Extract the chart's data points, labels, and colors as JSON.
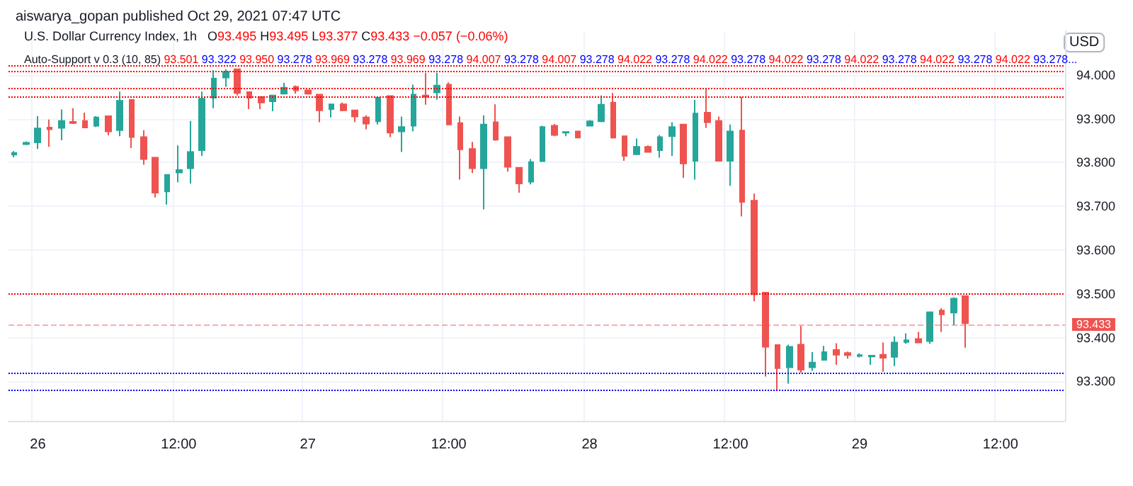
{
  "chart_data": {
    "type": "candlestick",
    "title": "U.S. Dollar Currency Index, 1h",
    "subtitle": "O93.495 H93.495 L93.377 C93.433 −0.057 (−0.06%)",
    "ylabel": "USD",
    "annotations": [
      "aiswarya_gopan published Oct 29, 2021 07:47 UTC",
      "Auto-Support v 0.3 (10, 85)",
      "93.501",
      "93.322",
      "93.950",
      "93.278",
      "93.969",
      "93.278",
      "93.969",
      "93.278",
      "94.007",
      "93.278",
      "94.007",
      "93.278",
      "94.022",
      "93.278",
      "94.022",
      "93.278",
      "94.022",
      "93.278",
      "94.022",
      "93.278",
      "94.022",
      "93.278",
      "94.022",
      "93.278..."
    ],
    "categories": [
      null,
      null,
      "26",
      null,
      null,
      null,
      null,
      null,
      null,
      null,
      null,
      null,
      null,
      null,
      "12:00",
      null,
      null,
      null,
      null,
      null,
      null,
      null,
      null,
      null,
      null,
      "27",
      null,
      null,
      null,
      null,
      null,
      null,
      null,
      null,
      null,
      null,
      null,
      "12:00",
      null,
      null,
      null,
      null,
      null,
      null,
      null,
      null,
      null,
      null,
      null,
      "28",
      null,
      null,
      null,
      null,
      null,
      null,
      null,
      null,
      null,
      null,
      null,
      "12:00",
      null,
      null,
      null,
      null,
      null,
      null,
      null,
      null,
      null,
      null,
      "29",
      null,
      null,
      null,
      null,
      null,
      null,
      null,
      null,
      null,
      null,
      null,
      "12:00",
      null,
      null,
      null,
      null,
      null
    ],
    "ohlc": [
      [
        93.818,
        93.826,
        93.812,
        93.822
      ],
      [
        93.842,
        93.848,
        93.84,
        93.845
      ],
      [
        93.846,
        93.906,
        93.831,
        93.878
      ],
      [
        93.88,
        93.898,
        93.836,
        93.876
      ],
      [
        93.879,
        93.921,
        93.851,
        93.895
      ],
      [
        93.893,
        93.924,
        93.888,
        93.89
      ],
      [
        93.895,
        93.914,
        93.879,
        93.88
      ],
      [
        93.884,
        93.906,
        93.881,
        93.903
      ],
      [
        93.906,
        93.907,
        93.862,
        93.871
      ],
      [
        93.874,
        93.962,
        93.86,
        93.941
      ],
      [
        93.943,
        93.944,
        93.833,
        93.858
      ],
      [
        93.858,
        93.874,
        93.795,
        93.808
      ],
      [
        93.811,
        93.812,
        93.72,
        93.731
      ],
      [
        93.734,
        93.773,
        93.704,
        93.772
      ],
      [
        93.777,
        93.839,
        93.755,
        93.783
      ],
      [
        93.787,
        93.895,
        93.752,
        93.824
      ],
      [
        93.828,
        93.962,
        93.815,
        93.946
      ],
      [
        93.948,
        94.011,
        93.924,
        93.992
      ],
      [
        93.994,
        94.013,
        93.973,
        94.007
      ],
      [
        94.013,
        94.014,
        93.953,
        93.959
      ],
      [
        93.961,
        93.962,
        93.922,
        93.948
      ],
      [
        93.95,
        93.951,
        93.922,
        93.937
      ],
      [
        93.94,
        93.954,
        93.917,
        93.953
      ],
      [
        93.957,
        93.982,
        93.956,
        93.971
      ],
      [
        93.973,
        93.976,
        93.957,
        93.965
      ],
      [
        93.965,
        93.966,
        93.955,
        93.957
      ],
      [
        93.955,
        93.956,
        93.892,
        93.919
      ],
      [
        93.922,
        93.934,
        93.903,
        93.933
      ],
      [
        93.933,
        93.937,
        93.917,
        93.919
      ],
      [
        93.919,
        93.92,
        93.892,
        93.905
      ],
      [
        93.903,
        93.908,
        93.876,
        93.889
      ],
      [
        93.894,
        93.949,
        93.887,
        93.948
      ],
      [
        93.952,
        93.953,
        93.858,
        93.868
      ],
      [
        93.871,
        93.905,
        93.824,
        93.881
      ],
      [
        93.884,
        93.978,
        93.871,
        93.955
      ],
      [
        93.953,
        94.005,
        93.932,
        93.95
      ],
      [
        93.96,
        94.005,
        93.944,
        93.976
      ],
      [
        93.978,
        93.983,
        93.886,
        93.887
      ],
      [
        93.89,
        93.905,
        93.761,
        93.83
      ],
      [
        93.831,
        93.847,
        93.776,
        93.787
      ],
      [
        93.787,
        93.908,
        93.693,
        93.887
      ],
      [
        93.892,
        93.933,
        93.85,
        93.852
      ],
      [
        93.858,
        93.859,
        93.779,
        93.79
      ],
      [
        93.788,
        93.789,
        93.731,
        93.752
      ],
      [
        93.756,
        93.808,
        93.75,
        93.801
      ],
      [
        93.803,
        93.884,
        93.802,
        93.881
      ],
      [
        93.884,
        93.888,
        93.86,
        93.863
      ],
      [
        93.868,
        93.871,
        93.86,
        93.87
      ],
      [
        93.871,
        93.872,
        93.856,
        93.857
      ],
      [
        93.884,
        93.897,
        93.883,
        93.894
      ],
      [
        93.894,
        93.953,
        93.892,
        93.932
      ],
      [
        93.937,
        93.959,
        93.855,
        93.857
      ],
      [
        93.86,
        93.861,
        93.804,
        93.815
      ],
      [
        93.819,
        93.855,
        93.817,
        93.836
      ],
      [
        93.836,
        93.839,
        93.823,
        93.824
      ],
      [
        93.828,
        93.863,
        93.811,
        93.858
      ],
      [
        93.86,
        93.892,
        93.815,
        93.881
      ],
      [
        93.887,
        93.888,
        93.765,
        93.798
      ],
      [
        93.804,
        93.943,
        93.761,
        93.912
      ],
      [
        93.914,
        93.968,
        93.879,
        93.892
      ],
      [
        93.895,
        93.905,
        93.803,
        93.804
      ],
      [
        93.804,
        93.887,
        93.747,
        93.871
      ],
      [
        93.873,
        93.95,
        93.677,
        93.71
      ],
      [
        93.713,
        93.729,
        93.483,
        93.499
      ],
      [
        93.503,
        93.504,
        93.311,
        93.379
      ],
      [
        93.383,
        93.384,
        93.278,
        93.33
      ],
      [
        93.332,
        93.384,
        93.295,
        93.379
      ],
      [
        93.384,
        93.427,
        93.32,
        93.327
      ],
      [
        93.332,
        93.367,
        93.324,
        93.343
      ],
      [
        93.349,
        93.381,
        93.348,
        93.367
      ],
      [
        93.372,
        93.387,
        93.338,
        93.361
      ],
      [
        93.365,
        93.368,
        93.352,
        93.36
      ],
      [
        93.358,
        93.364,
        93.355,
        93.36
      ],
      [
        93.357,
        93.36,
        93.338,
        93.359
      ],
      [
        93.361,
        93.389,
        93.322,
        93.354
      ],
      [
        93.356,
        93.403,
        93.335,
        93.389
      ],
      [
        93.39,
        93.41,
        93.386,
        93.394
      ],
      [
        93.397,
        93.413,
        93.388,
        93.389
      ],
      [
        93.392,
        93.46,
        93.386,
        93.458
      ],
      [
        93.462,
        93.467,
        93.413,
        93.453
      ],
      [
        93.457,
        93.492,
        93.429,
        93.489
      ],
      [
        93.495,
        93.495,
        93.377,
        93.433
      ],
      null,
      null,
      null,
      null,
      null,
      null,
      null,
      null
    ],
    "ylim": [
      93.21,
      94.1
    ],
    "yticks": [
      {
        "value": 93.3,
        "label": "93.300"
      },
      {
        "value": 93.4,
        "label": "93.400"
      },
      {
        "value": 93.5,
        "label": "93.500"
      },
      {
        "value": 93.6,
        "label": "93.600"
      },
      {
        "value": 93.7,
        "label": "93.700"
      },
      {
        "value": 93.8,
        "label": "93.800"
      },
      {
        "value": 93.9,
        "label": "93.900"
      },
      {
        "value": 94.0,
        "label": "94.000"
      }
    ],
    "ref_lines": [
      {
        "axis": "y",
        "value": 94.022,
        "color": "#ff0000",
        "line_style": "dotted"
      },
      {
        "axis": "y",
        "value": 94.007,
        "color": "#ff0000",
        "line_style": "dotted"
      },
      {
        "axis": "y",
        "value": 93.969,
        "color": "#ff0000",
        "line_style": "dotted"
      },
      {
        "axis": "y",
        "value": 93.95,
        "color": "#ff0000",
        "line_style": "dotted"
      },
      {
        "axis": "y",
        "value": 93.501,
        "color": "#ff0000",
        "line_style": "dotted"
      },
      {
        "axis": "y",
        "value": 93.322,
        "color": "#0000ff",
        "line_style": "dotted"
      },
      {
        "axis": "y",
        "value": 93.278,
        "color": "#0000ff",
        "line_style": "dotted"
      },
      {
        "axis": "y",
        "value": 93.433,
        "label": "93.433",
        "color": "#ef5350",
        "line_style": "dashed"
      }
    ],
    "grid": true
  }
}
